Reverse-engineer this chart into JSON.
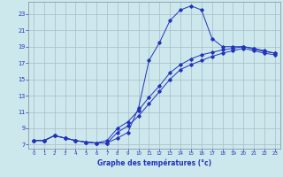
{
  "xlabel": "Graphe des températures (°c)",
  "xlim": [
    -0.5,
    23.5
  ],
  "ylim": [
    6.5,
    24.5
  ],
  "xticks": [
    0,
    1,
    2,
    3,
    4,
    5,
    6,
    7,
    8,
    9,
    10,
    11,
    12,
    13,
    14,
    15,
    16,
    17,
    18,
    19,
    20,
    21,
    22,
    23
  ],
  "yticks": [
    7,
    9,
    11,
    13,
    15,
    17,
    19,
    21,
    23
  ],
  "bg_color": "#cce8ec",
  "grid_color": "#aabbc8",
  "line_color": "#2233bb",
  "curve1_x": [
    0,
    1,
    2,
    3,
    4,
    5,
    6,
    7,
    8,
    9,
    10,
    11,
    12,
    13,
    14,
    15,
    16,
    17,
    18,
    19,
    20,
    21,
    22,
    23
  ],
  "curve1_y": [
    7.5,
    7.5,
    8.1,
    7.8,
    7.5,
    7.3,
    7.2,
    7.2,
    7.8,
    8.5,
    11.5,
    17.3,
    19.5,
    22.2,
    23.5,
    24.0,
    23.5,
    20.0,
    19.0,
    19.0,
    19.0,
    18.8,
    18.5,
    18.2
  ],
  "curve2_x": [
    0,
    1,
    2,
    3,
    4,
    5,
    6,
    7,
    8,
    9,
    10,
    11,
    12,
    13,
    14,
    15,
    16,
    17,
    18,
    19,
    20,
    21,
    22,
    23
  ],
  "curve2_y": [
    7.5,
    7.5,
    8.1,
    7.8,
    7.5,
    7.3,
    7.2,
    7.2,
    8.5,
    9.3,
    10.5,
    12.0,
    13.5,
    15.0,
    16.2,
    16.8,
    17.3,
    17.8,
    18.2,
    18.5,
    18.8,
    18.5,
    18.2,
    18.0
  ],
  "curve3_x": [
    0,
    1,
    2,
    3,
    4,
    5,
    6,
    7,
    8,
    9,
    10,
    11,
    12,
    13,
    14,
    15,
    16,
    17,
    18,
    19,
    20,
    21,
    22,
    23
  ],
  "curve3_y": [
    7.5,
    7.5,
    8.1,
    7.8,
    7.5,
    7.3,
    7.2,
    7.5,
    9.0,
    9.8,
    11.2,
    12.8,
    14.2,
    15.8,
    16.8,
    17.5,
    18.0,
    18.3,
    18.6,
    18.8,
    19.0,
    18.7,
    18.4,
    18.2
  ]
}
